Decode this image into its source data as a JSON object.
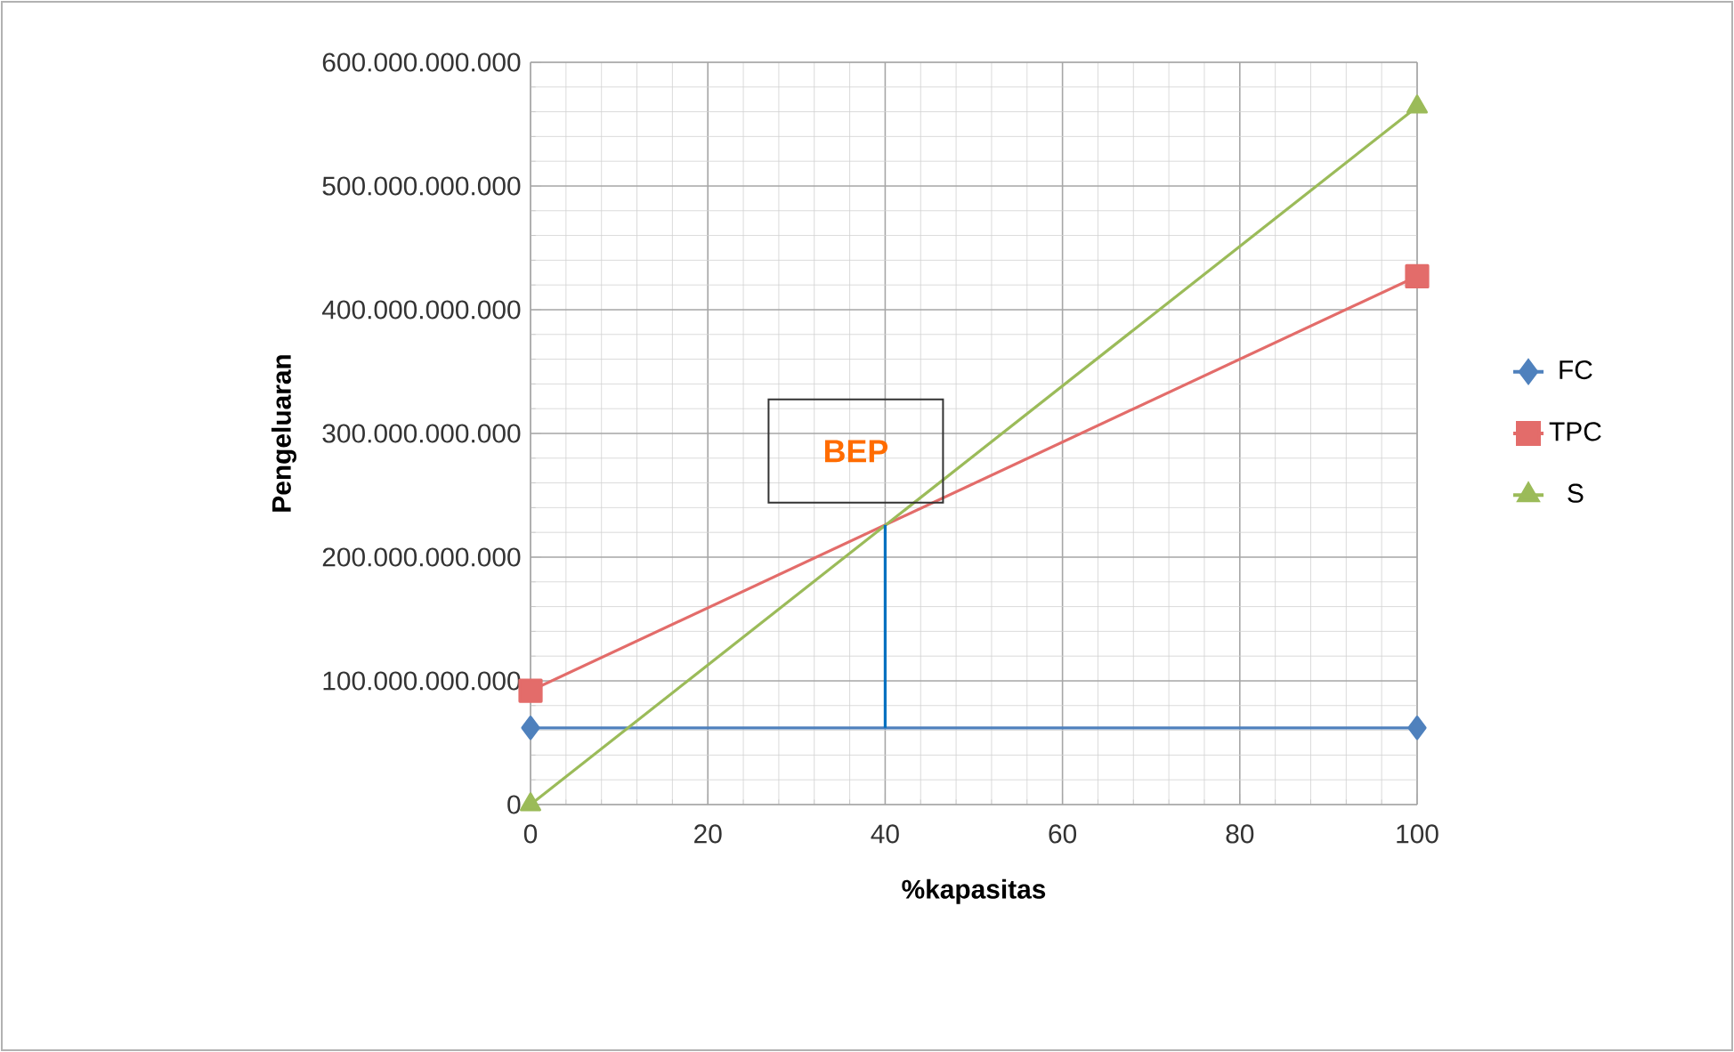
{
  "chart_data": {
    "type": "line",
    "xlabel": "%kapasitas",
    "ylabel": "Pengeluaran",
    "xlim": [
      0,
      100
    ],
    "xticks": [
      0,
      20,
      40,
      60,
      80,
      100
    ],
    "ylim": [
      0,
      600000000000
    ],
    "yticks": [
      {
        "value": 0,
        "label": "0"
      },
      {
        "value": 100000000000,
        "label": "100.000.000.000"
      },
      {
        "value": 200000000000,
        "label": "200.000.000.000"
      },
      {
        "value": 300000000000,
        "label": "300.000.000.000"
      },
      {
        "value": 400000000000,
        "label": "400.000.000.000"
      },
      {
        "value": 500000000000,
        "label": "500.000.000.000"
      },
      {
        "value": 600000000000,
        "label": "600.000.000.000"
      }
    ],
    "x": [
      0,
      100
    ],
    "series": [
      {
        "name": "FC",
        "color": "#4f81bd",
        "marker": "diamond",
        "values": [
          62000000000,
          62000000000
        ]
      },
      {
        "name": "TPC",
        "color": "#e36c6a",
        "marker": "square",
        "values": [
          92000000000,
          427000000000
        ]
      },
      {
        "name": "S",
        "color": "#9bbb59",
        "marker": "triangle",
        "values": [
          0,
          564000000000
        ]
      },
      {
        "color": "#0070c0",
        "marker": "none",
        "x": [
          40,
          40
        ],
        "values": [
          62000000000,
          226000000000
        ]
      }
    ],
    "annotations": [
      {
        "text": "BEP",
        "x": 40,
        "y": 226000000000
      }
    ],
    "grid": true,
    "legend": "right"
  }
}
